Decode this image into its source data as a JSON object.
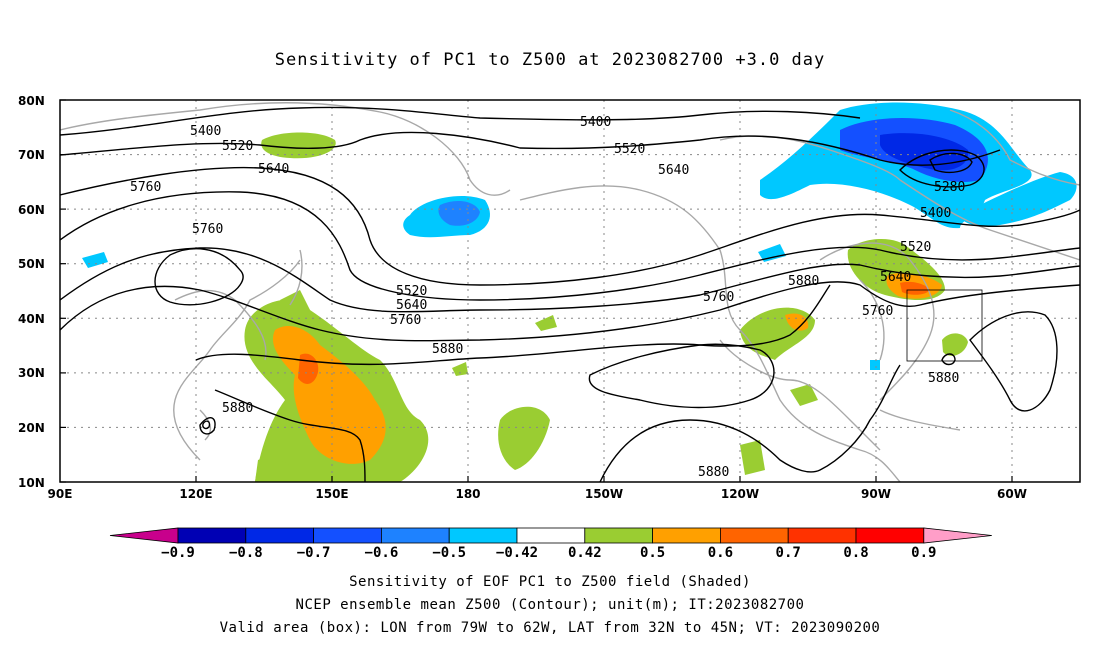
{
  "title": "Sensitivity of PC1 to Z500 at 2023082700 +3.0 day",
  "captions": {
    "line1": "Sensitivity of EOF PC1 to Z500 field (Shaded)",
    "line2": "NCEP ensemble mean Z500 (Contour); unit(m); IT:2023082700",
    "line3": "Valid area (box): LON from 79W to 62W, LAT from 32N to 45N; VT: 2023090200"
  },
  "map": {
    "lat_labels": [
      "80N",
      "70N",
      "60N",
      "50N",
      "40N",
      "30N",
      "20N",
      "10N"
    ],
    "lon_labels": [
      "90E",
      "120E",
      "150E",
      "180",
      "150W",
      "120W",
      "90W",
      "60W"
    ],
    "contour_labels": [
      {
        "id": "c1",
        "text": "5400"
      },
      {
        "id": "c2",
        "text": "5520"
      },
      {
        "id": "c3",
        "text": "5640"
      },
      {
        "id": "c4",
        "text": "5760"
      },
      {
        "id": "c5",
        "text": "5760"
      },
      {
        "id": "c6",
        "text": "5880"
      },
      {
        "id": "c7",
        "text": "5520"
      },
      {
        "id": "c8",
        "text": "5640"
      },
      {
        "id": "c9",
        "text": "5760"
      },
      {
        "id": "c10",
        "text": "5880"
      },
      {
        "id": "c11",
        "text": "5400"
      },
      {
        "id": "c12",
        "text": "5520"
      },
      {
        "id": "c13",
        "text": "5640"
      },
      {
        "id": "c14",
        "text": "5760"
      },
      {
        "id": "c15",
        "text": "5880"
      },
      {
        "id": "c16",
        "text": "5880"
      },
      {
        "id": "c17",
        "text": "5280"
      },
      {
        "id": "c18",
        "text": "5400"
      },
      {
        "id": "c19",
        "text": "5520"
      },
      {
        "id": "c20",
        "text": "5640"
      },
      {
        "id": "c21",
        "text": "5760"
      },
      {
        "id": "c22",
        "text": "5880"
      }
    ],
    "valid_box": {
      "lon_west": "79W",
      "lon_east": "62W",
      "lat_south": "32N",
      "lat_north": "45N"
    }
  },
  "colorbar": {
    "labels": [
      "-0.9",
      "-0.8",
      "-0.7",
      "-0.6",
      "-0.5",
      "-0.42",
      "0.42",
      "0.5",
      "0.6",
      "0.7",
      "0.8",
      "0.9"
    ],
    "colors": [
      "#c8008c",
      "#0000b4",
      "#0028e6",
      "#1450ff",
      "#1e82ff",
      "#00c8ff",
      "#ffffff",
      "#9acd32",
      "#ffa000",
      "#ff6400",
      "#ff3200",
      "#ff0000",
      "#ff9ec8"
    ]
  }
}
